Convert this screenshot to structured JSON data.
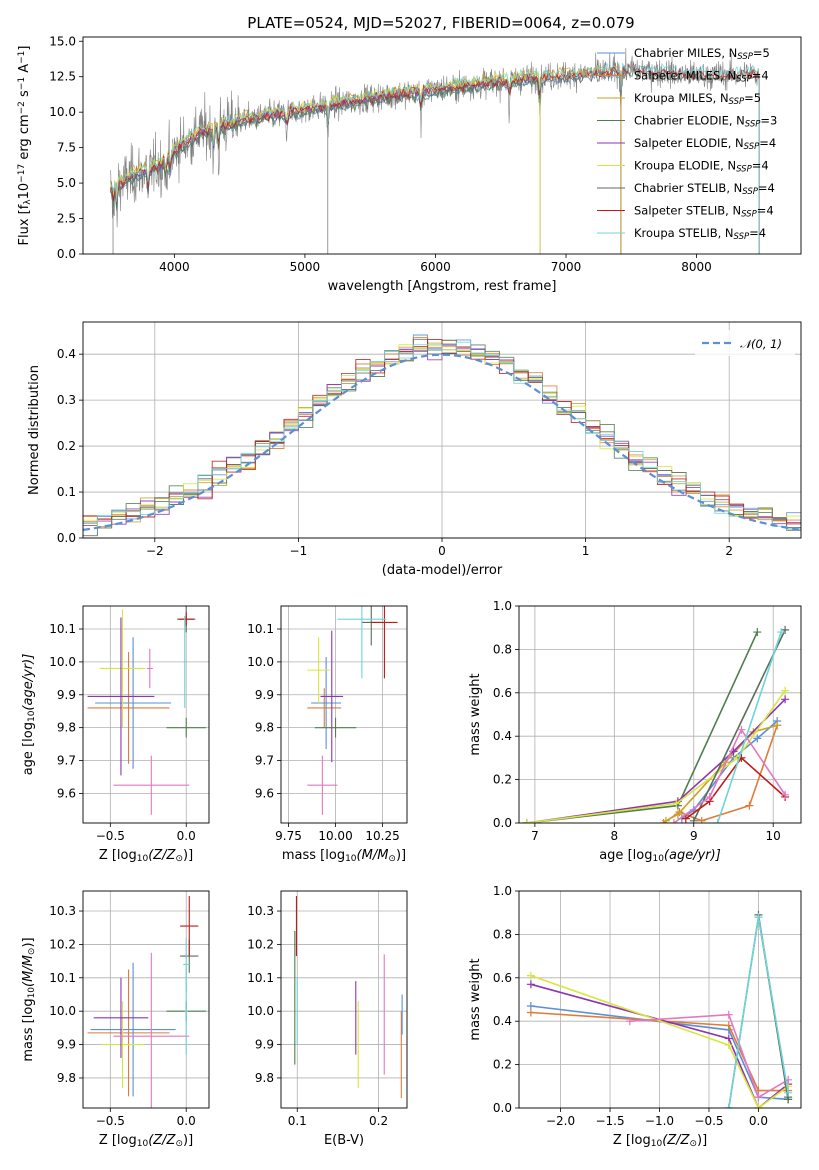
{
  "figure": {
    "title": "PLATE=0524, MJD=52027, FIBERID=0064, z=0.079"
  },
  "chart_data": [
    {
      "id": "spectrum",
      "type": "line",
      "xlabel": "wavelength [Angstrom, rest frame]",
      "ylabel_parts": [
        "Flux [f",
        "λ",
        "10",
        "−17",
        " erg cm",
        "−2",
        " s",
        "−1",
        " A",
        "−1",
        "]"
      ],
      "xlim": [
        3300,
        8800
      ],
      "ylim": [
        0,
        15.3
      ],
      "xticks": [
        4000,
        5000,
        6000,
        7000,
        8000
      ],
      "yticks": [
        0.0,
        2.5,
        5.0,
        7.5,
        10.0,
        12.5,
        15.0
      ],
      "grid": false,
      "legend_position": "top-right",
      "observed_color": "#808080",
      "x_range": [
        3510,
        8480
      ],
      "continuum": [
        [
          3510,
          4.6
        ],
        [
          3700,
          5.6
        ],
        [
          3900,
          6.3
        ],
        [
          4000,
          7.3
        ],
        [
          4200,
          8.6
        ],
        [
          4500,
          9.4
        ],
        [
          5000,
          10.2
        ],
        [
          5500,
          11.0
        ],
        [
          6000,
          11.6
        ],
        [
          6500,
          12.2
        ],
        [
          7000,
          12.6
        ],
        [
          7500,
          13.0
        ],
        [
          8000,
          12.6
        ],
        [
          8480,
          12.7
        ]
      ],
      "series": [
        {
          "name": "Chabrier MILES, N",
          "sub": "SSP",
          "suffix": "=5",
          "color": "#5b8fd6",
          "x_end": 7420
        },
        {
          "name": "Salpeter MILES, N",
          "sub": "SSP",
          "suffix": "=4",
          "color": "#e07b39",
          "x_end": 7420
        },
        {
          "name": "Kroupa MILES, N",
          "sub": "SSP",
          "suffix": "=5",
          "color": "#c9a227",
          "x_end": 7420
        },
        {
          "name": "Chabrier ELODIE, N",
          "sub": "SSP",
          "suffix": "=3",
          "color": "#4f7f4f",
          "x_end": 6800
        },
        {
          "name": "Salpeter ELODIE, N",
          "sub": "SSP",
          "suffix": "=4",
          "color": "#8e35b4",
          "x_end": 6800
        },
        {
          "name": "Kroupa ELODIE, N",
          "sub": "SSP",
          "suffix": "=4",
          "color": "#d7e63a",
          "x_end": 6800
        },
        {
          "name": "Chabrier STELIB, N",
          "sub": "SSP",
          "suffix": "=4",
          "color": "#5a6e5a",
          "x_end": 8480
        },
        {
          "name": "Salpeter STELIB, N",
          "sub": "SSP",
          "suffix": "=4",
          "color": "#c01b1b",
          "x_end": 8480
        },
        {
          "name": "Kroupa STELIB, N",
          "sub": "SSP",
          "suffix": "=4",
          "color": "#6fd4d8",
          "x_end": 8480
        }
      ],
      "absorption_lines": [
        3530,
        3560,
        3800,
        3935,
        3970,
        4300,
        4340,
        4860,
        5175,
        5890,
        6565,
        6800,
        7420
      ]
    },
    {
      "id": "residuals",
      "type": "histogram",
      "xlabel": "(data-model)/error",
      "ylabel": "Normed distribution",
      "xlim": [
        -2.5,
        2.5
      ],
      "ylim": [
        0,
        0.47
      ],
      "xticks": [
        -2,
        -1,
        0,
        1,
        2
      ],
      "xtick_labels": [
        "−2",
        "−1",
        "0",
        "1",
        "2"
      ],
      "yticks": [
        0.0,
        0.1,
        0.2,
        0.3,
        0.4
      ],
      "grid": true,
      "bin_width": 0.1,
      "bins_from": -2.5,
      "bin_count": 50,
      "reference": {
        "name": "𝒩(0, 1)",
        "color": "#5b8fd6"
      }
    },
    {
      "id": "age_vs_z",
      "type": "errorbar",
      "xlabel_parts": [
        "Z [log",
        "10",
        "(Z/Z",
        "⊙",
        ")]"
      ],
      "ylabel_parts": [
        "age  [log",
        "10",
        "(age/yr)]"
      ],
      "xlim": [
        -0.68,
        0.15
      ],
      "ylim": [
        9.51,
        10.17
      ],
      "xticks": [
        -0.5,
        0.0
      ],
      "xtick_labels": [
        "−0.5",
        "0.0"
      ],
      "yticks": [
        9.6,
        9.7,
        9.8,
        9.9,
        10.0,
        10.1
      ],
      "grid": true,
      "points": [
        {
          "x": -0.38,
          "xerr": 0.27,
          "y": 9.86,
          "yerr": 0.17,
          "color": "#e07b39"
        },
        {
          "x": -0.35,
          "xerr": 0.25,
          "y": 9.875,
          "yerr": 0.2,
          "color": "#5b8fd6"
        },
        {
          "x": -0.42,
          "xerr": 0.15,
          "y": 9.98,
          "yerr": 0.18,
          "color": "#d7e63a"
        },
        {
          "x": -0.43,
          "xerr": 0.22,
          "y": 9.895,
          "yerr": 0.24,
          "color": "#8e35b4"
        },
        {
          "x": -0.23,
          "xerr": 0.25,
          "y": 9.625,
          "yerr": 0.09,
          "color": "#e377c2"
        },
        {
          "x": -0.24,
          "xerr": 0.02,
          "y": 9.98,
          "yerr": 0.06,
          "color": "#e377c2"
        },
        {
          "x": 0.0,
          "xerr": 0.13,
          "y": 9.8,
          "yerr": 0.03,
          "color": "#4f7f4f"
        },
        {
          "x": 0.0,
          "xerr": 0.06,
          "y": 10.13,
          "yerr": 0.04,
          "color": "#5a6e5a"
        },
        {
          "x": 0.0,
          "xerr": 0.05,
          "y": 10.13,
          "yerr": 0.02,
          "color": "#c01b1b"
        },
        {
          "x": -0.01,
          "xerr": 0.01,
          "y": 10.0,
          "yerr": 0.14,
          "color": "#6fd4d8"
        }
      ]
    },
    {
      "id": "age_vs_mass",
      "type": "errorbar",
      "xlabel_parts": [
        "mass [log",
        "10",
        "(M/M",
        "⊙",
        ")]"
      ],
      "xlim": [
        9.71,
        10.38
      ],
      "ylim": [
        9.51,
        10.17
      ],
      "xticks": [
        9.75,
        10.0,
        10.25
      ],
      "xtick_labels": [
        "9.75",
        "10.00",
        "10.25"
      ],
      "yticks": [
        9.6,
        9.7,
        9.8,
        9.9,
        10.0,
        10.1
      ],
      "grid": true,
      "points": [
        {
          "x": 9.94,
          "xerr": 0.09,
          "y": 9.86,
          "yerr": 0.06,
          "color": "#e07b39"
        },
        {
          "x": 9.95,
          "xerr": 0.08,
          "y": 9.875,
          "yerr": 0.14,
          "color": "#5b8fd6"
        },
        {
          "x": 9.91,
          "xerr": 0.06,
          "y": 9.975,
          "yerr": 0.1,
          "color": "#d7e63a"
        },
        {
          "x": 9.98,
          "xerr": 0.06,
          "y": 9.895,
          "yerr": 0.2,
          "color": "#8e35b4"
        },
        {
          "x": 9.93,
          "xerr": 0.08,
          "y": 9.625,
          "yerr": 0.09,
          "color": "#e377c2"
        },
        {
          "x": 10.0,
          "xerr": 0.11,
          "y": 9.8,
          "yerr": 0.03,
          "color": "#4f7f4f"
        },
        {
          "x": 10.19,
          "xerr": 0.05,
          "y": 10.12,
          "yerr": 0.07,
          "color": "#5a6e5a"
        },
        {
          "x": 10.26,
          "xerr": 0.07,
          "y": 10.12,
          "yerr": 0.17,
          "color": "#c01b1b"
        },
        {
          "x": 10.14,
          "xerr": 0.13,
          "y": 10.13,
          "yerr": 0.18,
          "color": "#6fd4d8"
        }
      ]
    },
    {
      "id": "weight_vs_age",
      "type": "line",
      "xlabel_parts": [
        "age  [log",
        "10",
        "(age/yr)]"
      ],
      "ylabel": "mass weight",
      "xlim": [
        6.8,
        10.35
      ],
      "ylim": [
        0,
        1
      ],
      "xticks": [
        7,
        8,
        9,
        10
      ],
      "yticks": [
        0.0,
        0.2,
        0.4,
        0.6,
        0.8,
        1.0
      ],
      "grid": true,
      "series": [
        {
          "color": "#5b8fd6",
          "x": [
            8.85,
            9.0,
            9.5,
            9.8,
            10.05
          ],
          "y": [
            0.02,
            0.06,
            0.3,
            0.39,
            0.47
          ]
        },
        {
          "color": "#e07b39",
          "x": [
            8.62,
            8.82,
            9.1,
            9.7,
            10.05
          ],
          "y": [
            0.0,
            0.05,
            0.01,
            0.08,
            0.45
          ]
        },
        {
          "color": "#c9a227",
          "x": [
            8.65,
            8.8,
            9.4,
            9.75,
            10.05
          ],
          "y": [
            0.01,
            0.04,
            0.28,
            0.42,
            0.45
          ]
        },
        {
          "color": "#4f7f4f",
          "x": [
            6.9,
            8.8,
            9.8
          ],
          "y": [
            0.0,
            0.08,
            0.88
          ]
        },
        {
          "color": "#8e35b4",
          "x": [
            6.9,
            8.8,
            9.5,
            10.15
          ],
          "y": [
            0.0,
            0.1,
            0.33,
            0.57
          ]
        },
        {
          "color": "#d7e63a",
          "x": [
            6.9,
            8.78,
            9.55,
            10.15
          ],
          "y": [
            0.0,
            0.09,
            0.3,
            0.61
          ]
        },
        {
          "color": "#5a6e5a",
          "x": [
            9.0,
            10.15
          ],
          "y": [
            0.01,
            0.89
          ]
        },
        {
          "color": "#c01b1b",
          "x": [
            8.9,
            9.2,
            9.6,
            10.15
          ],
          "y": [
            0.02,
            0.1,
            0.3,
            0.12
          ]
        },
        {
          "color": "#e377c2",
          "x": [
            8.75,
            9.2,
            9.6,
            10.15
          ],
          "y": [
            0.0,
            0.12,
            0.43,
            0.13
          ]
        },
        {
          "color": "#6fd4d8",
          "x": [
            9.3,
            10.1
          ],
          "y": [
            0.0,
            0.88
          ]
        }
      ]
    },
    {
      "id": "mass_vs_z",
      "type": "errorbar",
      "xlabel_parts": [
        "Z [log",
        "10",
        "(Z/Z",
        "⊙",
        ")]"
      ],
      "ylabel_parts": [
        "mass [log",
        "10",
        "(M/M",
        "⊙",
        ")]"
      ],
      "xlim": [
        -0.68,
        0.15
      ],
      "ylim": [
        9.71,
        10.36
      ],
      "xticks": [
        -0.5,
        0.0
      ],
      "xtick_labels": [
        "−0.5",
        "0.0"
      ],
      "yticks": [
        9.8,
        9.9,
        10.0,
        10.1,
        10.2,
        10.3
      ],
      "grid": true,
      "points": [
        {
          "x": -0.38,
          "xerr": 0.27,
          "y": 9.935,
          "yerr": 0.19,
          "color": "#e07b39"
        },
        {
          "x": -0.35,
          "xerr": 0.28,
          "y": 9.945,
          "yerr": 0.2,
          "color": "#5b8fd6"
        },
        {
          "x": -0.42,
          "xerr": 0.14,
          "y": 9.9,
          "yerr": 0.13,
          "color": "#d7e63a"
        },
        {
          "x": -0.43,
          "xerr": 0.18,
          "y": 9.98,
          "yerr": 0.12,
          "color": "#8e35b4"
        },
        {
          "x": -0.23,
          "xerr": 0.25,
          "y": 9.925,
          "yerr": 0.25,
          "color": "#e377c2"
        },
        {
          "x": 0.0,
          "xerr": 0.13,
          "y": 10.0,
          "yerr": 0.03,
          "color": "#4f7f4f"
        },
        {
          "x": 0.02,
          "xerr": 0.06,
          "y": 10.165,
          "yerr": 0.05,
          "color": "#5a6e5a"
        },
        {
          "x": 0.02,
          "xerr": 0.06,
          "y": 10.255,
          "yerr": 0.09,
          "color": "#c01b1b"
        },
        {
          "x": 0.0,
          "xerr": 0.02,
          "y": 10.14,
          "yerr": 0.08,
          "color": "#6fd4d8"
        },
        {
          "x": 0.0,
          "xerr": 0.01,
          "y": 10.0,
          "yerr": 0.13,
          "color": "#6fd4d8"
        }
      ]
    },
    {
      "id": "mass_vs_ebv",
      "type": "errorbar",
      "xlabel": "E(B-V)",
      "xlim": [
        0.08,
        0.235
      ],
      "ylim": [
        9.71,
        10.36
      ],
      "xticks": [
        0.1,
        0.2
      ],
      "xtick_labels": [
        "0.1",
        "0.2"
      ],
      "yticks": [
        9.8,
        9.9,
        10.0,
        10.1,
        10.2,
        10.3
      ],
      "grid": true,
      "points": [
        {
          "x": 0.097,
          "xerr": 0,
          "y": 10.04,
          "yerr": 0.2,
          "color": "#4f7f4f"
        },
        {
          "x": 0.099,
          "xerr": 0,
          "y": 10.255,
          "yerr": 0.09,
          "color": "#c01b1b"
        },
        {
          "x": 0.1,
          "xerr": 0,
          "y": 10.0,
          "yerr": 0.1,
          "color": "#6fd4d8"
        },
        {
          "x": 0.172,
          "xerr": 0,
          "y": 9.98,
          "yerr": 0.11,
          "color": "#8e35b4"
        },
        {
          "x": 0.175,
          "xerr": 0,
          "y": 9.9,
          "yerr": 0.13,
          "color": "#d7e63a"
        },
        {
          "x": 0.207,
          "xerr": 0,
          "y": 9.99,
          "yerr": 0.18,
          "color": "#e377c2"
        },
        {
          "x": 0.228,
          "xerr": 0,
          "y": 9.87,
          "yerr": 0.13,
          "color": "#e07b39"
        },
        {
          "x": 0.229,
          "xerr": 0,
          "y": 9.99,
          "yerr": 0.06,
          "color": "#5b8fd6"
        }
      ]
    },
    {
      "id": "weight_vs_z",
      "type": "line",
      "xlabel_parts": [
        "Z [log",
        "10",
        "(Z/Z",
        "⊙",
        ")]"
      ],
      "ylabel": "mass weight",
      "xlim": [
        -2.42,
        0.43
      ],
      "ylim": [
        0,
        1
      ],
      "xticks": [
        -2.0,
        -1.5,
        -1.0,
        -0.5,
        0.0
      ],
      "xtick_labels": [
        "−2.0",
        "−1.5",
        "−1.0",
        "−0.5",
        "0.0"
      ],
      "yticks": [
        0.0,
        0.2,
        0.4,
        0.6,
        0.8,
        1.0
      ],
      "grid": true,
      "series": [
        {
          "color": "#5b8fd6",
          "x": [
            -2.3,
            -0.3,
            0.0,
            0.3
          ],
          "y": [
            0.47,
            0.36,
            0.05,
            0.04
          ]
        },
        {
          "color": "#e07b39",
          "x": [
            -2.3,
            -0.3,
            0.0,
            0.3
          ],
          "y": [
            0.44,
            0.38,
            0.08,
            0.08
          ]
        },
        {
          "color": "#8e35b4",
          "x": [
            -2.3,
            -0.3,
            0.0,
            0.3
          ],
          "y": [
            0.57,
            0.32,
            0.0,
            0.11
          ]
        },
        {
          "color": "#d7e63a",
          "x": [
            -2.3,
            -0.3,
            0.0,
            0.3
          ],
          "y": [
            0.61,
            0.29,
            0.0,
            0.1
          ]
        },
        {
          "color": "#e377c2",
          "x": [
            -1.3,
            -0.3,
            0.0,
            0.3
          ],
          "y": [
            0.4,
            0.43,
            0.05,
            0.13
          ]
        },
        {
          "color": "#4f7f4f",
          "x": [
            -0.3,
            0.0,
            0.3
          ],
          "y": [
            0.0,
            0.88,
            0.05
          ]
        },
        {
          "color": "#5a6e5a",
          "x": [
            0.0,
            0.3
          ],
          "y": [
            0.89,
            0.04
          ]
        },
        {
          "color": "#6fd4d8",
          "x": [
            -0.3,
            0.0,
            0.3
          ],
          "y": [
            0.0,
            0.88,
            0.07
          ]
        }
      ]
    }
  ]
}
